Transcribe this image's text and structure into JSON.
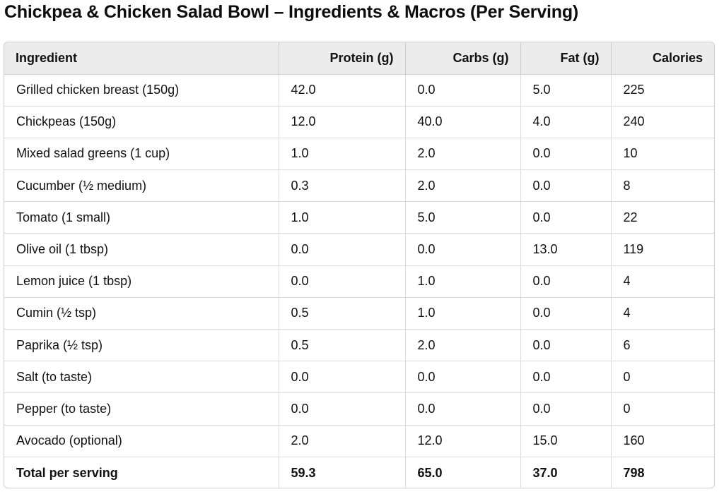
{
  "title": "Chickpea & Chicken Salad Bowl – Ingredients & Macros (Per Serving)",
  "table": {
    "headers": [
      "Ingredient",
      "Protein (g)",
      "Carbs (g)",
      "Fat (g)",
      "Calories"
    ],
    "rows": [
      [
        "Grilled chicken breast (150g)",
        "42.0",
        "0.0",
        "5.0",
        "225"
      ],
      [
        "Chickpeas (150g)",
        "12.0",
        "40.0",
        "4.0",
        "240"
      ],
      [
        "Mixed salad greens (1 cup)",
        "1.0",
        "2.0",
        "0.0",
        "10"
      ],
      [
        "Cucumber (½ medium)",
        "0.3",
        "2.0",
        "0.0",
        "8"
      ],
      [
        "Tomato (1 small)",
        "1.0",
        "5.0",
        "0.0",
        "22"
      ],
      [
        "Olive oil (1 tbsp)",
        "0.0",
        "0.0",
        "13.0",
        "119"
      ],
      [
        "Lemon juice (1 tbsp)",
        "0.0",
        "1.0",
        "0.0",
        "4"
      ],
      [
        "Cumin (½ tsp)",
        "0.5",
        "1.0",
        "0.0",
        "4"
      ],
      [
        "Paprika (½ tsp)",
        "0.5",
        "2.0",
        "0.0",
        "6"
      ],
      [
        "Salt (to taste)",
        "0.0",
        "0.0",
        "0.0",
        "0"
      ],
      [
        "Pepper (to taste)",
        "0.0",
        "0.0",
        "0.0",
        "0"
      ],
      [
        "Avocado (optional)",
        "2.0",
        "12.0",
        "15.0",
        "160"
      ]
    ],
    "total": [
      "Total per serving",
      "59.3",
      "65.0",
      "37.0",
      "798"
    ]
  }
}
